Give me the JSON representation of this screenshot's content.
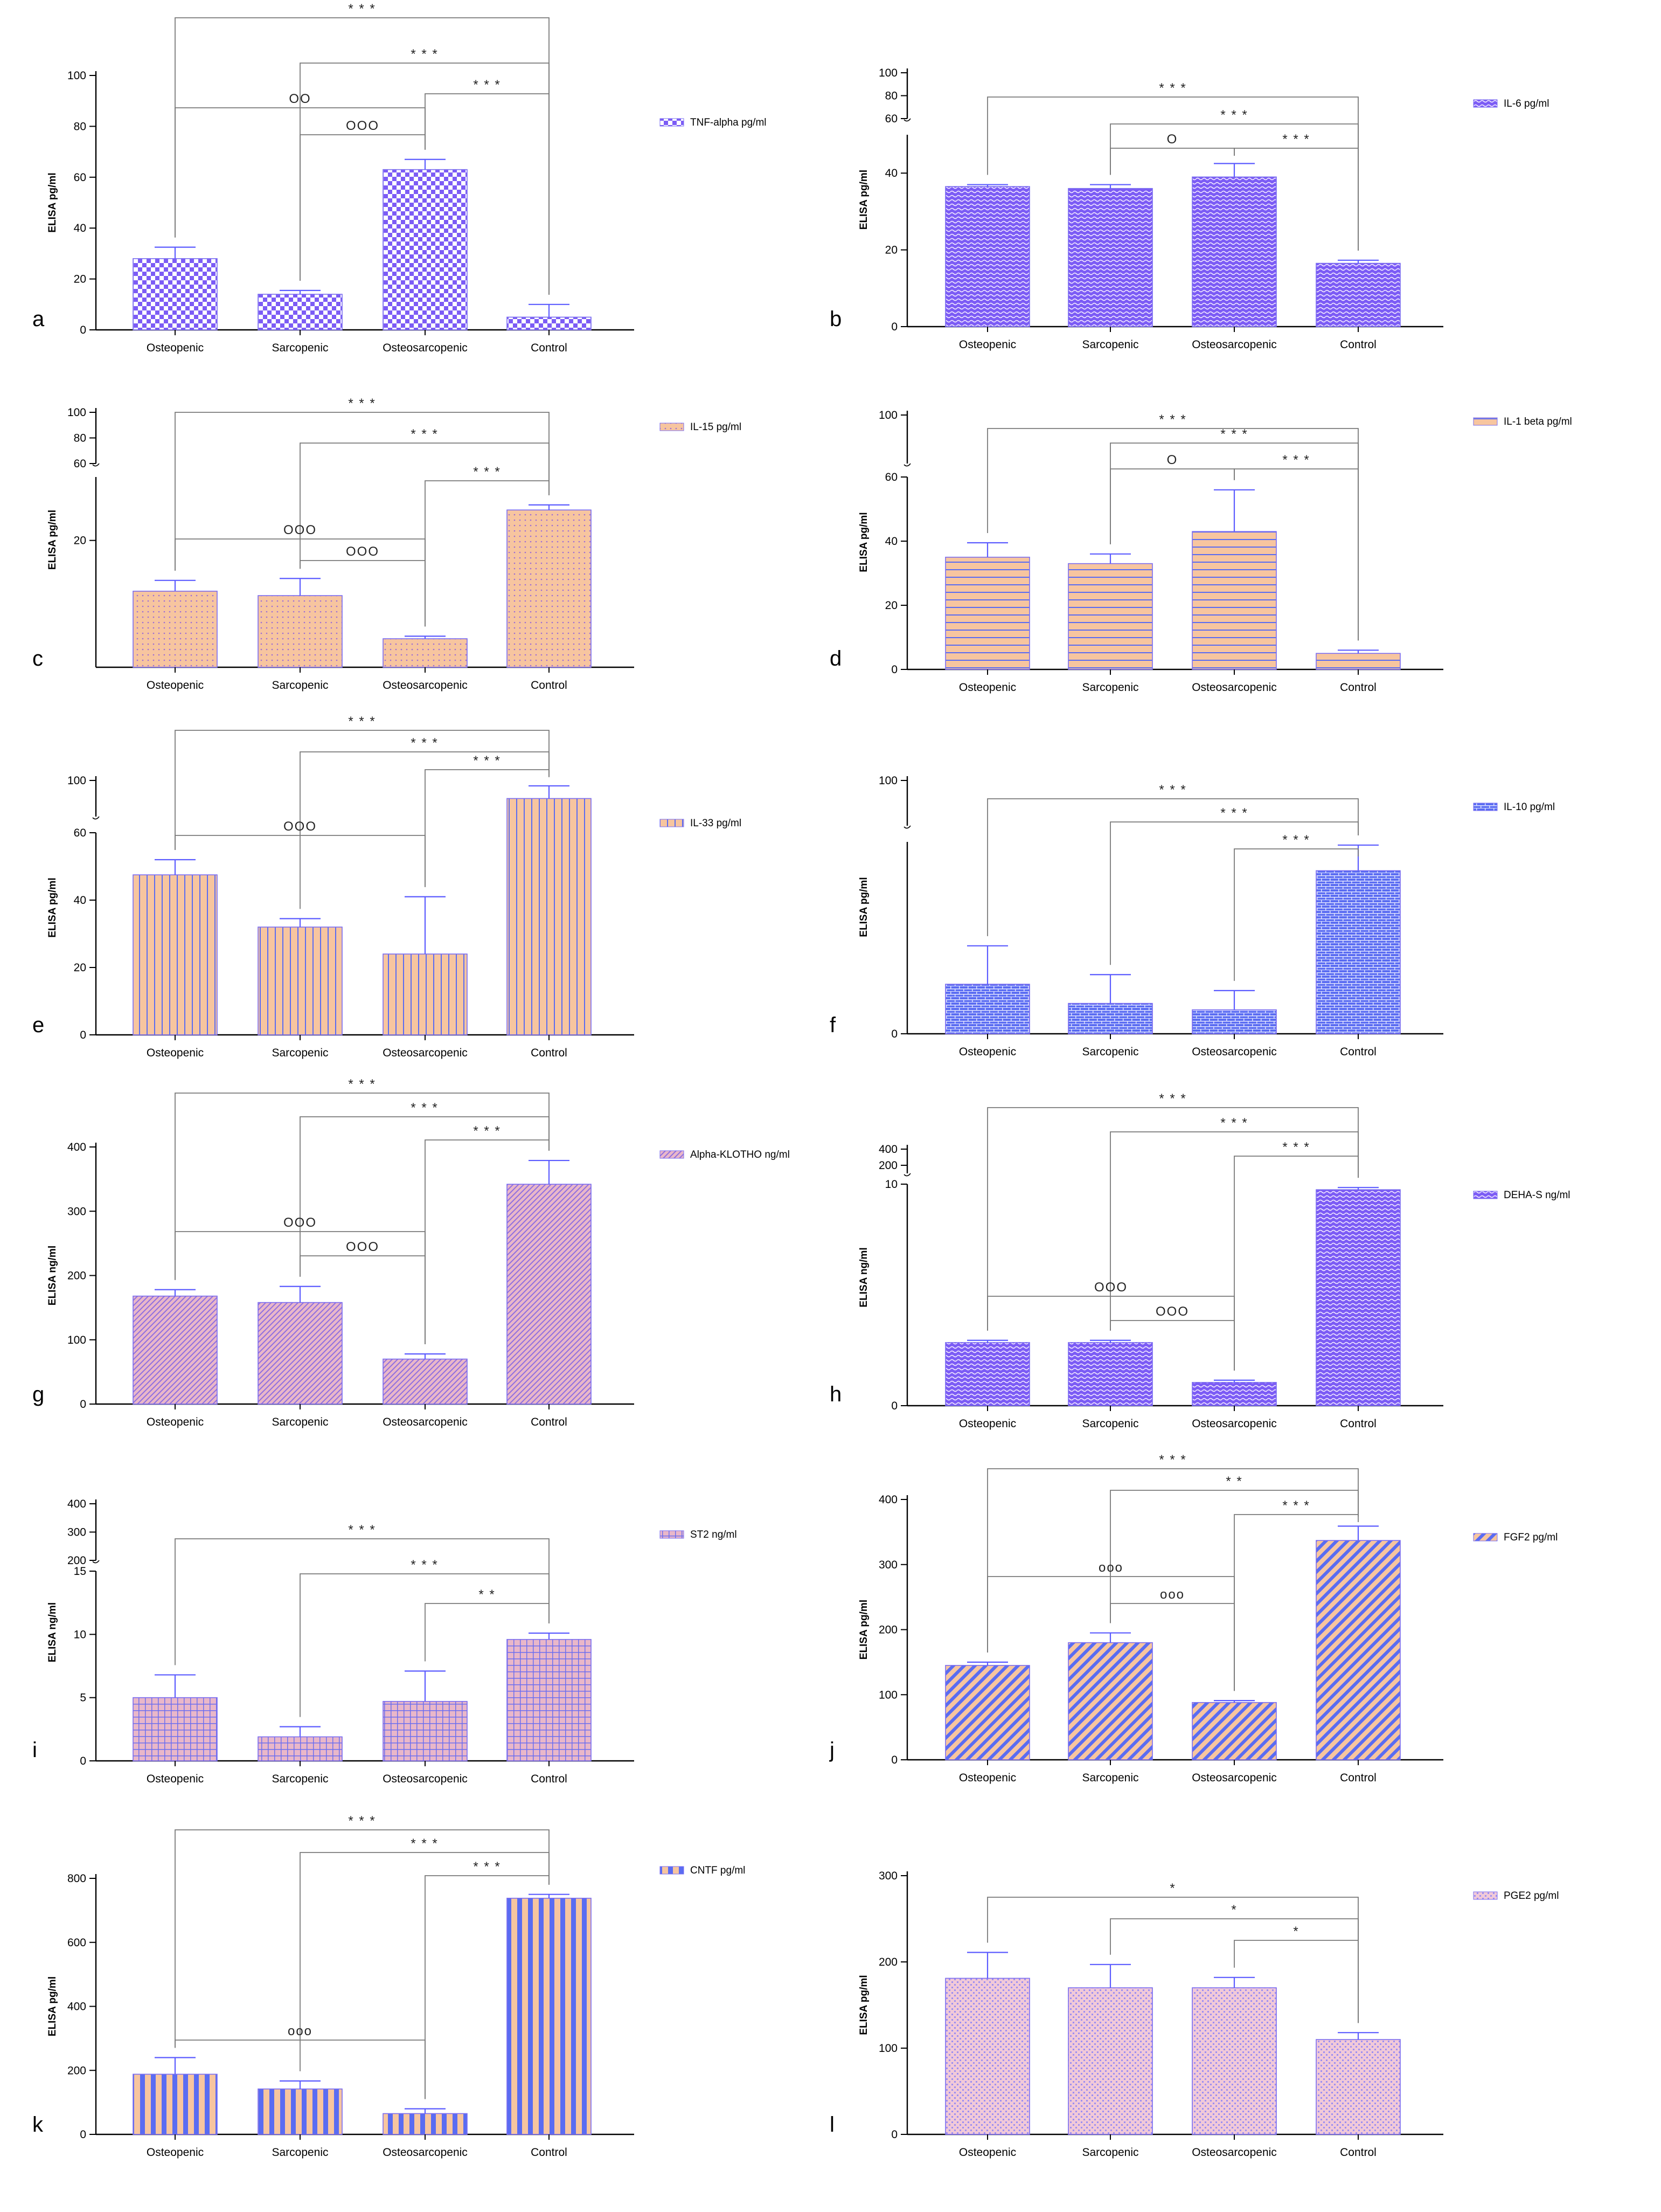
{
  "page": {
    "background": "#ffffff"
  },
  "colors": {
    "axis": "#000000",
    "bracket": "#7a7a7a",
    "error": "#5b5bff",
    "bar_border": "#7a6cf0",
    "violet": "#7c5cf5",
    "blue": "#5a6cf2",
    "peach": "#f7c59f",
    "pink": "#e9b7c9",
    "light": "#f4ecff"
  },
  "chart_data": [
    {
      "id": "a",
      "type": "bar",
      "panel_label": "a",
      "categories": [
        "Osteopenic",
        "Sarcopenic",
        "Osteosarcopenic",
        "Control"
      ],
      "values": [
        28,
        14,
        63,
        5
      ],
      "errors": [
        4.5,
        1.5,
        4,
        5
      ],
      "ylabel": "ELISA pg/ml",
      "legend": "TNF-alpha pg/ml",
      "legend_position": "right",
      "pattern": "checker",
      "ylim": [
        0,
        100
      ],
      "yticks": [
        "0",
        "20",
        "40",
        "60",
        "80",
        "100"
      ],
      "ytick_values": [
        0,
        20,
        40,
        60,
        80,
        100
      ],
      "annotations": [
        {
          "from": 0,
          "to": 3,
          "text": "* * *"
        },
        {
          "from": 1,
          "to": 3,
          "text": "* * *"
        },
        {
          "from": 2,
          "to": 3,
          "text": "* * *"
        },
        {
          "from": 0,
          "to": 2,
          "text": "OO"
        },
        {
          "from": 1,
          "to": 2,
          "text": "OOO"
        }
      ]
    },
    {
      "id": "b",
      "type": "bar",
      "panel_label": "b",
      "categories": [
        "Osteopenic",
        "Sarcopenic",
        "Osteosarcopenic",
        "Control"
      ],
      "values": [
        36.5,
        36,
        39,
        16.5
      ],
      "errors": [
        0.5,
        1,
        3.5,
        0.8
      ],
      "ylabel": "ELISA pg/ml",
      "legend": "IL-6 pg/ml",
      "legend_position": "right",
      "pattern": "wave",
      "ylim": [
        0,
        100
      ],
      "yticks": [
        "0",
        "20",
        "40",
        "60",
        "80",
        "100"
      ],
      "ytick_values": [
        0,
        20,
        40,
        60,
        80,
        100
      ],
      "annotations": [
        {
          "from": 0,
          "to": 3,
          "text": "* * *"
        },
        {
          "from": 1,
          "to": 3,
          "text": "* * *"
        },
        {
          "from": 1,
          "to": 2,
          "text": "O"
        },
        {
          "from": 2,
          "to": 3,
          "text": "* * *"
        }
      ]
    },
    {
      "id": "c",
      "type": "bar",
      "panel_label": "c",
      "categories": [
        "Osteopenic",
        "Sarcopenic",
        "Osteosarcopenic",
        "Control"
      ],
      "values": [
        12,
        11.3,
        4.5,
        24.8
      ],
      "errors": [
        1.7,
        2.7,
        0.4,
        0.8
      ],
      "ylabel": "ELISA pg/ml",
      "legend": "IL-15 pg/ml",
      "legend_position": "right",
      "pattern": "dots",
      "ylim": [
        0,
        100
      ],
      "yticks": [
        "20",
        "60",
        "80",
        "100"
      ],
      "ytick_values": [
        20,
        60,
        80,
        100
      ],
      "annotations": [
        {
          "from": 0,
          "to": 3,
          "text": "* * *"
        },
        {
          "from": 1,
          "to": 3,
          "text": "* * *"
        },
        {
          "from": 2,
          "to": 3,
          "text": "* * *"
        },
        {
          "from": 0,
          "to": 2,
          "text": "OOO"
        },
        {
          "from": 1,
          "to": 2,
          "text": "OOO"
        }
      ]
    },
    {
      "id": "d",
      "type": "bar",
      "panel_label": "d",
      "categories": [
        "Osteopenic",
        "Sarcopenic",
        "Osteosarcopenic",
        "Control"
      ],
      "values": [
        35,
        33,
        43,
        5
      ],
      "errors": [
        4.5,
        3,
        13,
        1
      ],
      "ylabel": "ELISA pg/ml",
      "legend": "IL-1 beta pg/ml",
      "legend_position": "right",
      "pattern": "hlines",
      "ylim": [
        0,
        100
      ],
      "yticks": [
        "0",
        "20",
        "40",
        "60",
        "100"
      ],
      "ytick_values": [
        0,
        20,
        40,
        60,
        100
      ],
      "annotations": [
        {
          "from": 0,
          "to": 3,
          "text": "* * *"
        },
        {
          "from": 1,
          "to": 3,
          "text": "* * *"
        },
        {
          "from": 1,
          "to": 2,
          "text": "O"
        },
        {
          "from": 2,
          "to": 3,
          "text": "* * *"
        }
      ]
    },
    {
      "id": "e",
      "type": "bar",
      "panel_label": "e",
      "categories": [
        "Osteopenic",
        "Sarcopenic",
        "Osteosarcopenic",
        "Control"
      ],
      "values": [
        47.5,
        32,
        24,
        90
      ],
      "errors": [
        4.5,
        2.5,
        17,
        7
      ],
      "ylabel": "ELISA pg/ml",
      "legend": "IL-33 pg/ml",
      "legend_position": "right",
      "pattern": "vlines",
      "ylim": [
        0,
        100
      ],
      "yticks": [
        "0",
        "20",
        "40",
        "60",
        "100"
      ],
      "ytick_values": [
        0,
        20,
        40,
        60,
        100
      ],
      "annotations": [
        {
          "from": 0,
          "to": 3,
          "text": "* * *"
        },
        {
          "from": 1,
          "to": 3,
          "text": "* * *"
        },
        {
          "from": 2,
          "to": 3,
          "text": "* * *"
        },
        {
          "from": 0,
          "to": 2,
          "text": "OOO"
        }
      ]
    },
    {
      "id": "f",
      "type": "bar",
      "panel_label": "f",
      "categories": [
        "Osteopenic",
        "Sarcopenic",
        "Osteosarcopenic",
        "Control"
      ],
      "values": [
        15.5,
        9.5,
        7.5,
        51
      ],
      "errors": [
        12,
        9,
        6,
        8
      ],
      "ylabel": "ELISA pg/ml",
      "legend": "IL-10 pg/ml",
      "legend_position": "right",
      "pattern": "bricks",
      "ylim": [
        0,
        100
      ],
      "yticks": [
        "0",
        "100"
      ],
      "ytick_values": [
        0,
        100
      ],
      "annotations": [
        {
          "from": 0,
          "to": 3,
          "text": "* * *"
        },
        {
          "from": 1,
          "to": 3,
          "text": "* * *"
        },
        {
          "from": 2,
          "to": 3,
          "text": "* * *"
        }
      ]
    },
    {
      "id": "g",
      "type": "bar",
      "panel_label": "g",
      "categories": [
        "Osteopenic",
        "Sarcopenic",
        "Osteosarcopenic",
        "Control"
      ],
      "values": [
        168,
        158,
        70,
        342
      ],
      "errors": [
        10,
        25,
        8,
        37
      ],
      "ylabel": "ELISA ng/ml",
      "legend": "Alpha-KLOTHO ng/ml",
      "legend_position": "right",
      "pattern": "diag",
      "ylim": [
        0,
        400
      ],
      "yticks": [
        "0",
        "100",
        "200",
        "300",
        "400"
      ],
      "ytick_values": [
        0,
        100,
        200,
        300,
        400
      ],
      "annotations": [
        {
          "from": 0,
          "to": 3,
          "text": "* * *"
        },
        {
          "from": 1,
          "to": 3,
          "text": "* * *"
        },
        {
          "from": 2,
          "to": 3,
          "text": "* * *"
        },
        {
          "from": 0,
          "to": 2,
          "text": "OOO"
        },
        {
          "from": 1,
          "to": 2,
          "text": "OOO"
        }
      ]
    },
    {
      "id": "h",
      "type": "bar",
      "panel_label": "h",
      "categories": [
        "Osteopenic",
        "Sarcopenic",
        "Osteosarcopenic",
        "Control"
      ],
      "values": [
        2.85,
        2.85,
        1.05,
        9.75
      ],
      "errors": [
        0.1,
        0.1,
        0.1,
        0.1
      ],
      "ylabel": "ELISA ng/ml",
      "legend": "DEHA-S ng/ml",
      "legend_position": "right",
      "pattern": "wave",
      "ylim": [
        0,
        400
      ],
      "yticks": [
        "0",
        "10",
        "200",
        "400"
      ],
      "ytick_values": [
        0,
        10,
        200,
        400
      ],
      "annotations": [
        {
          "from": 0,
          "to": 3,
          "text": "* * *"
        },
        {
          "from": 1,
          "to": 3,
          "text": "* * *"
        },
        {
          "from": 2,
          "to": 3,
          "text": "* * *"
        },
        {
          "from": 1,
          "to": 2,
          "text": "OOO"
        },
        {
          "from": 0,
          "to": 2,
          "text": "OOO"
        }
      ]
    },
    {
      "id": "i",
      "type": "bar",
      "panel_label": "i",
      "categories": [
        "Osteopenic",
        "Sarcopenic",
        "Osteosarcopenic",
        "Control"
      ],
      "values": [
        5,
        1.9,
        4.7,
        9.6
      ],
      "errors": [
        1.8,
        0.8,
        2.4,
        0.5
      ],
      "ylabel": "ELISA ng/ml",
      "legend": "ST2 ng/ml",
      "legend_position": "right",
      "pattern": "grid",
      "ylim": [
        0,
        400
      ],
      "yticks": [
        "0",
        "5",
        "10",
        "15",
        "200",
        "300",
        "400"
      ],
      "ytick_values": [
        0,
        5,
        10,
        15,
        200,
        300,
        400
      ],
      "annotations": [
        {
          "from": 0,
          "to": 3,
          "text": "* * *"
        },
        {
          "from": 1,
          "to": 3,
          "text": "* * *"
        },
        {
          "from": 2,
          "to": 3,
          "text": "* *"
        }
      ]
    },
    {
      "id": "j",
      "type": "bar",
      "panel_label": "j",
      "categories": [
        "Osteopenic",
        "Sarcopenic",
        "Osteosarcopenic",
        "Control"
      ],
      "values": [
        145,
        180,
        88,
        337
      ],
      "errors": [
        5,
        15,
        3,
        22
      ],
      "ylabel": "ELISA pg/ml",
      "legend": "FGF2 pg/ml",
      "legend_position": "right",
      "pattern": "diag2",
      "ylim": [
        0,
        400
      ],
      "yticks": [
        "0",
        "100",
        "200",
        "300",
        "400"
      ],
      "ytick_values": [
        0,
        100,
        200,
        300,
        400
      ],
      "annotations": [
        {
          "from": 0,
          "to": 3,
          "text": "* * *"
        },
        {
          "from": 1,
          "to": 3,
          "text": "* *"
        },
        {
          "from": 2,
          "to": 3,
          "text": "* * *"
        },
        {
          "from": 0,
          "to": 2,
          "text": "ooo"
        },
        {
          "from": 1,
          "to": 2,
          "text": "ooo"
        }
      ]
    },
    {
      "id": "k",
      "type": "bar",
      "panel_label": "k",
      "categories": [
        "Osteopenic",
        "Sarcopenic",
        "Osteosarcopenic",
        "Control"
      ],
      "values": [
        188,
        142,
        65,
        738
      ],
      "errors": [
        52,
        25,
        15,
        12
      ],
      "ylabel": "ELISA pg/ml",
      "legend": "CNTF pg/ml",
      "legend_position": "right",
      "pattern": "vstripes",
      "ylim": [
        0,
        800
      ],
      "yticks": [
        "0",
        "200",
        "400",
        "600",
        "800"
      ],
      "ytick_values": [
        0,
        200,
        400,
        600,
        800
      ],
      "annotations": [
        {
          "from": 0,
          "to": 3,
          "text": "* * *"
        },
        {
          "from": 1,
          "to": 3,
          "text": "* * *"
        },
        {
          "from": 2,
          "to": 3,
          "text": "* * *"
        },
        {
          "from": 0,
          "to": 2,
          "text": "ooo"
        }
      ]
    },
    {
      "id": "l",
      "type": "bar",
      "panel_label": "l",
      "categories": [
        "Osteopenic",
        "Sarcopenic",
        "Osteosarcopenic",
        "Control"
      ],
      "values": [
        181,
        170,
        170,
        110
      ],
      "errors": [
        30,
        27,
        12,
        8
      ],
      "ylabel": "ELISA pg/ml",
      "legend": "PGE2 pg/ml",
      "legend_position": "right",
      "pattern": "fine",
      "ylim": [
        0,
        300
      ],
      "yticks": [
        "0",
        "100",
        "200",
        "300"
      ],
      "ytick_values": [
        0,
        100,
        200,
        300
      ],
      "annotations": [
        {
          "from": 0,
          "to": 3,
          "text": "*"
        },
        {
          "from": 1,
          "to": 3,
          "text": "*"
        },
        {
          "from": 2,
          "to": 3,
          "text": "*"
        }
      ]
    }
  ]
}
